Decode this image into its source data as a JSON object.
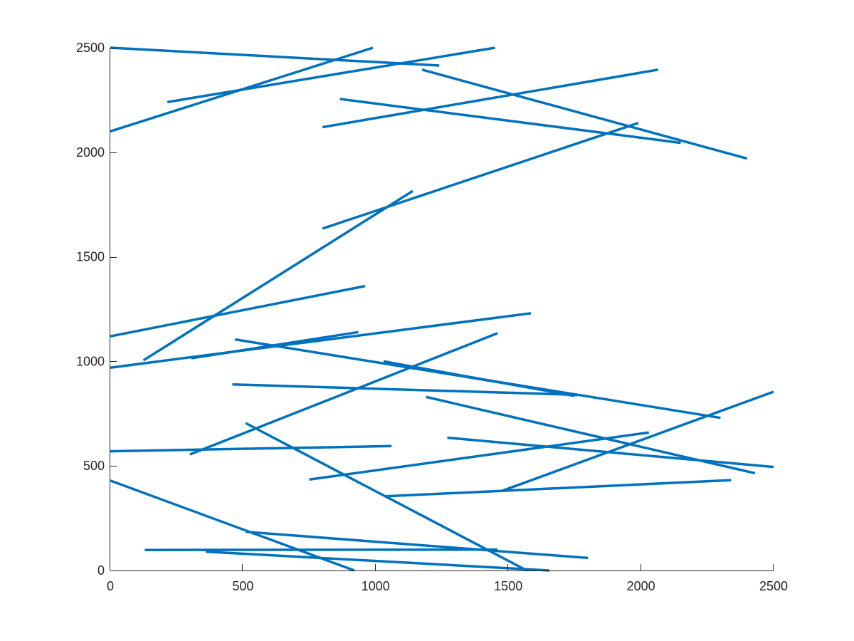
{
  "chart_data": {
    "type": "line",
    "title": "",
    "xlabel": "",
    "ylabel": "",
    "xlim": [
      0,
      2500
    ],
    "ylim": [
      0,
      2500
    ],
    "x_ticks": [
      0,
      500,
      1000,
      1500,
      2000,
      2500
    ],
    "y_ticks": [
      0,
      500,
      1000,
      1500,
      2000,
      2500
    ],
    "x_tick_labels": [
      "0",
      "500",
      "1000",
      "1500",
      "2000",
      "2500"
    ],
    "y_tick_labels": [
      "0",
      "500",
      "1000",
      "1500",
      "2000",
      "2500"
    ],
    "grid": false,
    "box": "left-bottom axes only",
    "line_color": "#0072BD",
    "segments": [
      {
        "x": [
          0,
          1240
        ],
        "y": [
          2500,
          2415
        ]
      },
      {
        "x": [
          0,
          990
        ],
        "y": [
          2100,
          2500
        ]
      },
      {
        "x": [
          215,
          1450
        ],
        "y": [
          2240,
          2500
        ]
      },
      {
        "x": [
          1175,
          2400
        ],
        "y": [
          2395,
          1970
        ]
      },
      {
        "x": [
          865,
          2150
        ],
        "y": [
          2255,
          2045
        ]
      },
      {
        "x": [
          800,
          2065
        ],
        "y": [
          2120,
          2395
        ]
      },
      {
        "x": [
          800,
          1990
        ],
        "y": [
          1635,
          2140
        ]
      },
      {
        "x": [
          125,
          1140
        ],
        "y": [
          1005,
          1815
        ]
      },
      {
        "x": [
          0,
          960
        ],
        "y": [
          1120,
          1360
        ]
      },
      {
        "x": [
          0,
          1585
        ],
        "y": [
          970,
          1230
        ]
      },
      {
        "x": [
          305,
          935
        ],
        "y": [
          1015,
          1140
        ]
      },
      {
        "x": [
          470,
          2300
        ],
        "y": [
          1105,
          730
        ]
      },
      {
        "x": [
          1030,
          1750
        ],
        "y": [
          1000,
          835
        ]
      },
      {
        "x": [
          1060,
          1760
        ],
        "y": [
          985,
          838
        ]
      },
      {
        "x": [
          460,
          1760
        ],
        "y": [
          890,
          840
        ]
      },
      {
        "x": [
          300,
          1460
        ],
        "y": [
          555,
          1135
        ]
      },
      {
        "x": [
          1190,
          2430
        ],
        "y": [
          830,
          465
        ]
      },
      {
        "x": [
          1270,
          2500
        ],
        "y": [
          635,
          495
        ]
      },
      {
        "x": [
          750,
          2030
        ],
        "y": [
          435,
          660
        ]
      },
      {
        "x": [
          1040,
          2340
        ],
        "y": [
          355,
          432
        ]
      },
      {
        "x": [
          1475,
          2500
        ],
        "y": [
          380,
          855
        ]
      },
      {
        "x": [
          0,
          1060
        ],
        "y": [
          570,
          595
        ]
      },
      {
        "x": [
          510,
          1570
        ],
        "y": [
          705,
          0
        ]
      },
      {
        "x": [
          0,
          920
        ],
        "y": [
          430,
          0
        ]
      },
      {
        "x": [
          510,
          1800
        ],
        "y": [
          185,
          60
        ]
      },
      {
        "x": [
          130,
          1460
        ],
        "y": [
          98,
          100
        ]
      },
      {
        "x": [
          360,
          1655
        ],
        "y": [
          90,
          0
        ]
      }
    ]
  }
}
